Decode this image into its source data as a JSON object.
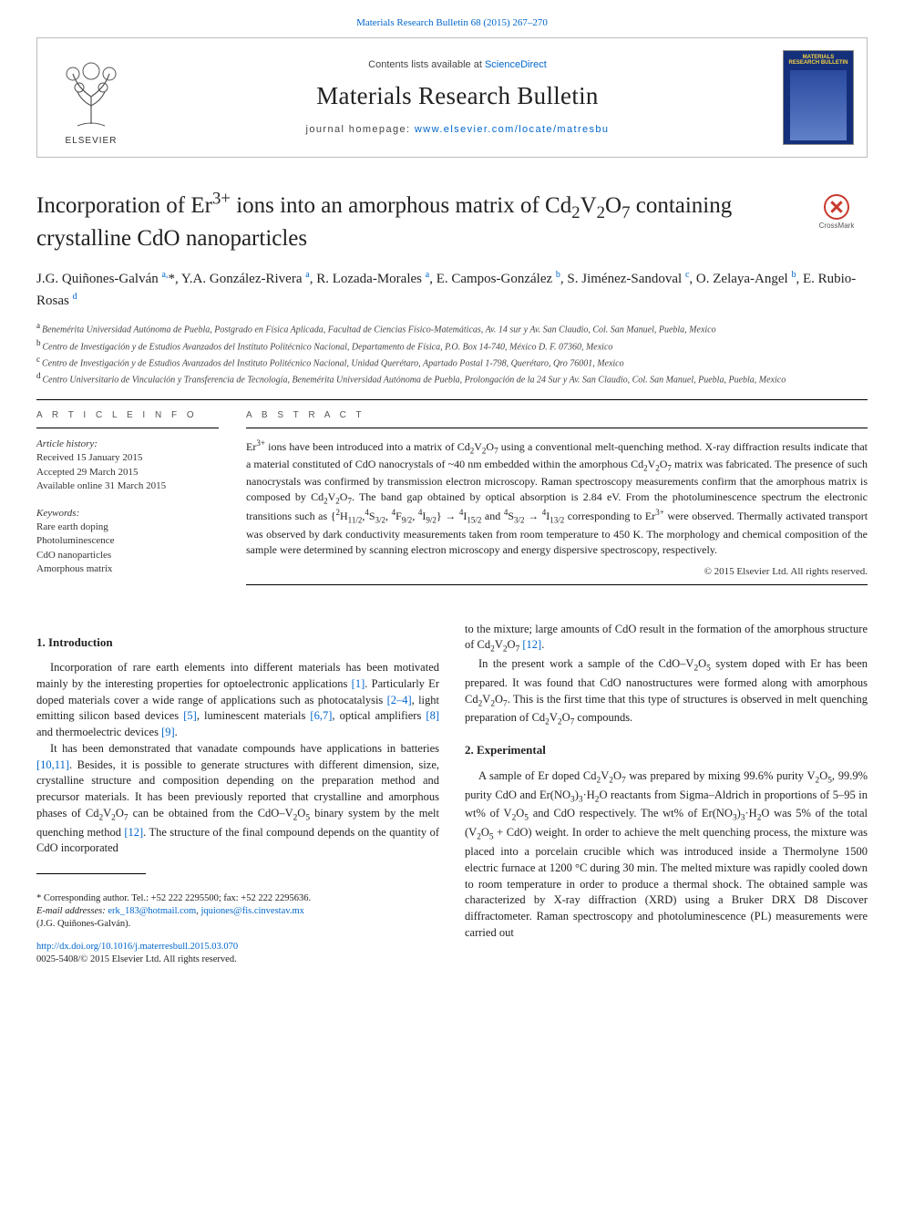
{
  "topLink": "Materials Research Bulletin 68 (2015) 267–270",
  "header": {
    "contentsLine_pre": "Contents lists available at ",
    "contentsLine_link": "ScienceDirect",
    "journalName": "Materials Research Bulletin",
    "homepage_pre": "journal homepage: ",
    "homepage_link": "www.elsevier.com/locate/matresbu",
    "elsevierWord": "ELSEVIER",
    "coverTitle": "MATERIALS RESEARCH BULLETIN"
  },
  "crossmark": "CrossMark",
  "title_html": "Incorporation of Er<sup>3+</sup> ions into an amorphous matrix of Cd<sub>2</sub>V<sub>2</sub>O<sub>7</sub> containing crystalline CdO nanoparticles",
  "authors_html": "J.G. Quiñones-Galván <sup class='aff-sup'>a,</sup>*, Y.A. González-Rivera <sup class='aff-sup'>a</sup>, R. Lozada-Morales <sup class='aff-sup'>a</sup>, E. Campos-González <sup class='aff-sup'>b</sup>, S. Jiménez-Sandoval <sup class='aff-sup'>c</sup>, O. Zelaya-Angel <sup class='aff-sup'>b</sup>, E. Rubio-Rosas <sup class='aff-sup'>d</sup>",
  "affiliations": [
    {
      "label": "a",
      "text": "Benemérita Universidad Autónoma de Puebla, Postgrado en Física Aplicada, Facultad de Ciencias Físico-Matemáticas, Av. 14 sur y Av. San Claudio, Col. San Manuel, Puebla, Mexico"
    },
    {
      "label": "b",
      "text": "Centro de Investigación y de Estudios Avanzados del Instituto Politécnico Nacional, Departamento de Física, P.O. Box 14-740, México D. F. 07360, Mexico"
    },
    {
      "label": "c",
      "text": "Centro de Investigación y de Estudios Avanzados del Instituto Politécnico Nacional, Unidad Querétaro, Apartado Postal 1-798, Querétaro, Qro 76001, Mexico"
    },
    {
      "label": "d",
      "text": "Centro Universitario de Vinculación y Transferencia de Tecnología, Benemérita Universidad Autónoma de Puebla, Prolongación de la 24 Sur y Av. San Claudio, Col. San Manuel, Puebla, Puebla, Mexico"
    }
  ],
  "infoLabel": "A R T I C L E   I N F O",
  "absLabel": "A B S T R A C T",
  "history": {
    "heading": "Article history:",
    "received": "Received 15 January 2015",
    "accepted": "Accepted 29 March 2015",
    "online": "Available online 31 March 2015"
  },
  "keywordsHeading": "Keywords:",
  "keywords": [
    "Rare earth doping",
    "Photoluminescence",
    "CdO nanoparticles",
    "Amorphous matrix"
  ],
  "abstract_html": "Er<sup>3+</sup> ions have been introduced into a matrix of Cd<sub>2</sub>V<sub>2</sub>O<sub>7</sub> using a conventional melt-quenching method. X-ray diffraction results indicate that a material constituted of CdO nanocrystals of ~40 nm embedded within the amorphous Cd<sub>2</sub>V<sub>2</sub>O<sub>7</sub> matrix was fabricated. The presence of such nanocrystals was confirmed by transmission electron microscopy. Raman spectroscopy measurements confirm that the amorphous matrix is composed by Cd<sub>2</sub>V<sub>2</sub>O<sub>7</sub>. The band gap obtained by optical absorption is 2.84 eV. From the photoluminescence spectrum the electronic transitions such as {<sup>2</sup>H<sub>11/2</sub>,<sup>4</sup>S<sub>3/2</sub>, <sup>4</sup>F<sub>9/2</sub>, <sup>4</sup>I<sub>9/2</sub>} → <sup>4</sup>I<sub>15/2</sub> and <sup>4</sup>S<sub>3/2</sub> → <sup>4</sup>I<sub>13/2</sub> corresponding to Er<sup>3+</sup> were observed. Thermally activated transport was observed by dark conductivity measurements taken from room temperature to 450 K. The morphology and chemical composition of the sample were determined by scanning electron microscopy and energy dispersive spectroscopy, respectively.",
  "copyright": "© 2015 Elsevier Ltd. All rights reserved.",
  "sections": {
    "intro_heading": "1. Introduction",
    "intro_p1_html": "Incorporation of rare earth elements into different materials has been motivated mainly by the interesting properties for optoelectronic applications <a class='ref'>[1]</a>. Particularly Er doped materials cover a wide range of applications such as photocatalysis <a class='ref'>[2–4]</a>, light emitting silicon based devices <a class='ref'>[5]</a>, luminescent materials <a class='ref'>[6,7]</a>, optical amplifiers <a class='ref'>[8]</a> and thermoelectric devices <a class='ref'>[9]</a>.",
    "intro_p2_html": "It has been demonstrated that vanadate compounds have applications in batteries <a class='ref'>[10,11]</a>. Besides, it is possible to generate structures with different dimension, size, crystalline structure and composition depending on the preparation method and precursor materials. It has been previously reported that crystalline and amorphous phases of Cd<sub>2</sub>V<sub>2</sub>O<sub>7</sub> can be obtained from the CdO–V<sub>2</sub>O<sub>5</sub> binary system by the melt quenching method <a class='ref'>[12]</a>. The structure of the final compound depends on the quantity of CdO incorporated",
    "intro_p3_html": "to the mixture; large amounts of CdO result in the formation of the amorphous structure of Cd<sub>2</sub>V<sub>2</sub>O<sub>7</sub> <a class='ref'>[12]</a>.",
    "intro_p4_html": "In the present work a sample of the CdO–V<sub>2</sub>O<sub>5</sub> system doped with Er has been prepared. It was found that CdO nanostructures were formed along with amorphous Cd<sub>2</sub>V<sub>2</sub>O<sub>7</sub>. This is the first time that this type of structures is observed in melt quenching preparation of Cd<sub>2</sub>V<sub>2</sub>O<sub>7</sub> compounds.",
    "exp_heading": "2. Experimental",
    "exp_p1_html": "A sample of Er doped Cd<sub>2</sub>V<sub>2</sub>O<sub>7</sub> was prepared by mixing 99.6% purity V<sub>2</sub>O<sub>5</sub>, 99.9% purity CdO and Er(NO<sub>3</sub>)<sub>3</sub>·H<sub>2</sub>O reactants from Sigma–Aldrich in proportions of 5–95 in wt% of V<sub>2</sub>O<sub>5</sub> and CdO respectively. The wt% of Er(NO<sub>3</sub>)<sub>3</sub>·H<sub>2</sub>O was 5% of the total (V<sub>2</sub>O<sub>5</sub> + CdO) weight. In order to achieve the melt quenching process, the mixture was placed into a porcelain crucible which was introduced inside a Thermolyne 1500 electric furnace at 1200 °C during 30 min. The melted mixture was rapidly cooled down to room temperature in order to produce a thermal shock. The obtained sample was characterized by X-ray diffraction (XRD) using a Bruker DRX D8 Discover diffractometer. Raman spectroscopy and photoluminescence (PL) measurements were carried out"
  },
  "footnote": {
    "corr_html": "* Corresponding author. Tel.: +52 222 2295500; fax: +52 222 2295636.",
    "email_label": "E-mail addresses: ",
    "email1": "erk_183@hotmail.com",
    "email2": "jquiones@fis.cinvestav.mx",
    "email_tail": "(J.G. Quiñones-Galván)."
  },
  "doi": {
    "link": "http://dx.doi.org/10.1016/j.materresbull.2015.03.070",
    "issn": "0025-5408/© 2015 Elsevier Ltd. All rights reserved."
  }
}
